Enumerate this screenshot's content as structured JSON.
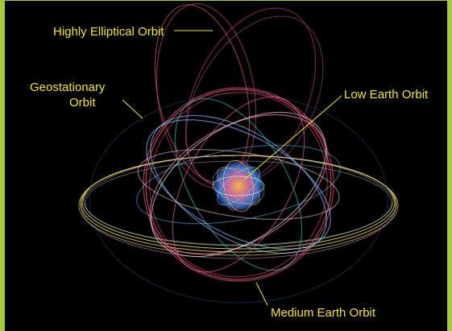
{
  "labels": {
    "heo": "Highly Elliptical Orbit",
    "geo_line1": "Geostationary",
    "geo_line2": "Orbit",
    "leo": "Low Earth Orbit",
    "meo": "Medium Earth Orbit"
  },
  "colors": {
    "background": "#000000",
    "border": "#a6c83a",
    "label": "#f2e23c"
  }
}
